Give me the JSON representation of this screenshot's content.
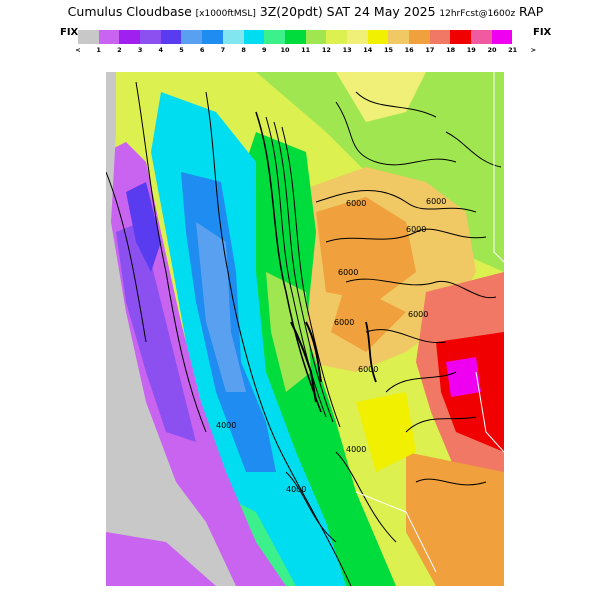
{
  "header": {
    "title_main": "Cumulus Cloudbase",
    "title_units": "[x1000ftMSL]",
    "title_time": "3Z(20pdt) SAT 24 May 2025",
    "title_fcst": "12hrFcst@1600z",
    "title_model": "RAP"
  },
  "colorbar": {
    "left_label": "FIX",
    "right_label": "FIX",
    "tick_labels": [
      "<",
      "1",
      "2",
      "3",
      "4",
      "5",
      "6",
      "7",
      "8",
      "9",
      "10",
      "11",
      "12",
      "13",
      "14",
      "15",
      "16",
      "17",
      "18",
      "19",
      "20",
      "21",
      ">"
    ],
    "colors": [
      "#c8c8c8",
      "#c864f0",
      "#a020f0",
      "#8c50f0",
      "#5a3cf0",
      "#5aa0f0",
      "#1e8cf0",
      "#82e6f0",
      "#00dcf0",
      "#3cf08c",
      "#00dc3c",
      "#a0e650",
      "#dcf050",
      "#f0f078",
      "#f0f000",
      "#f0c864",
      "#f0a03c",
      "#f07864",
      "#f00000",
      "#f05aa0",
      "#f000f0"
    ]
  },
  "map": {
    "contour_labels": [
      "6000",
      "6000",
      "6000",
      "6000",
      "6000",
      "6000",
      "6000",
      "4000",
      "4000",
      "4000"
    ]
  }
}
